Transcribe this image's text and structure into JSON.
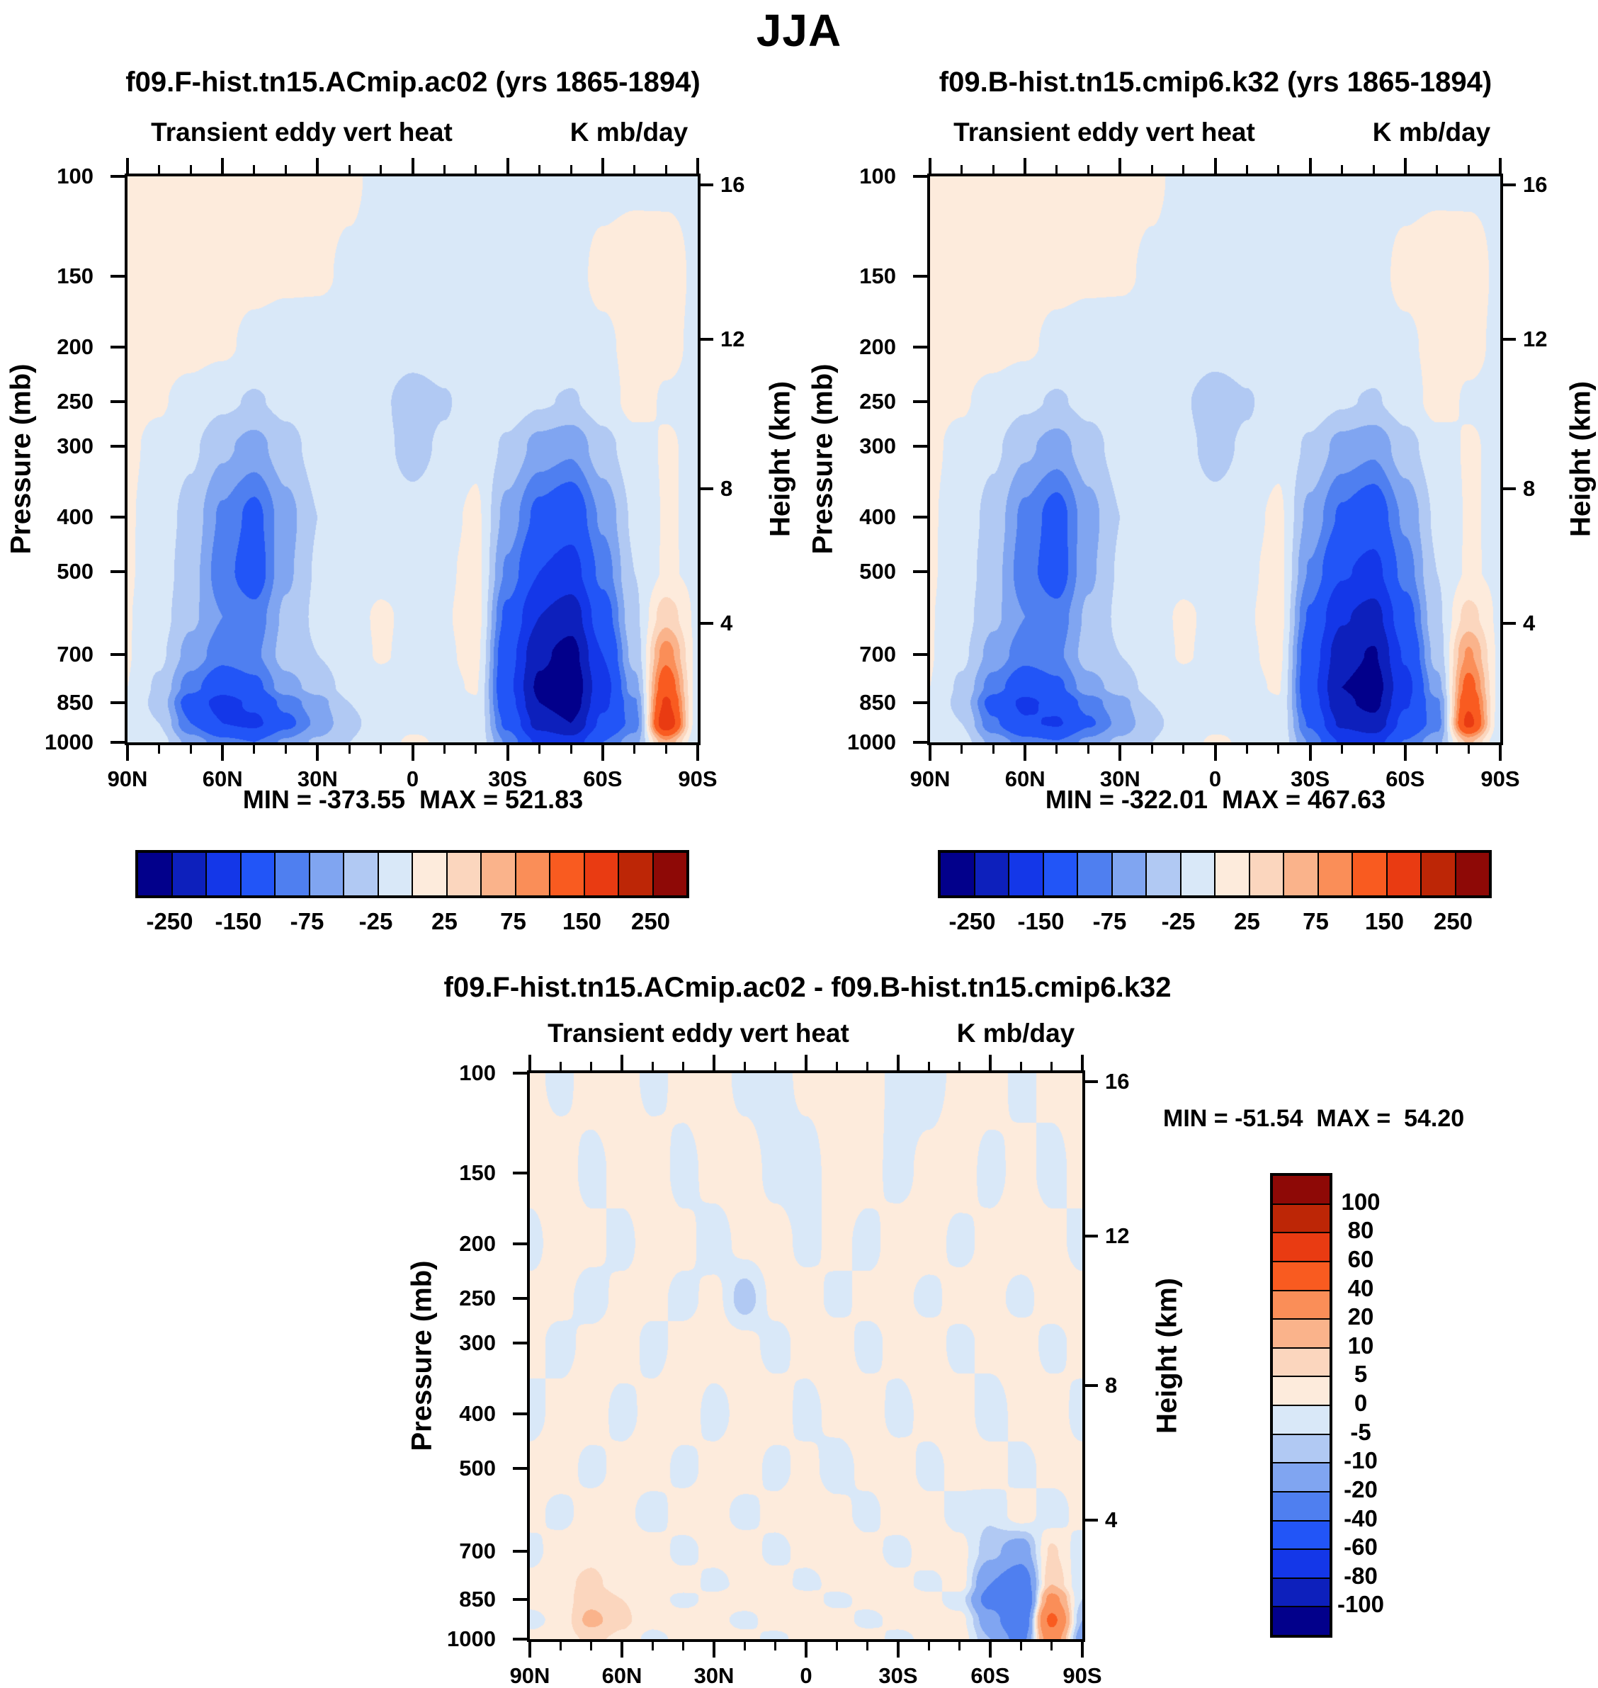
{
  "page_title": "JJA",
  "palette": [
    "#02008B",
    "#0D20BC",
    "#1437E8",
    "#2255F7",
    "#4F7FF0",
    "#80A5F1",
    "#B1C9F3",
    "#D9E8F8",
    "#FDEBDC",
    "#FBD6BE",
    "#FAB38B",
    "#FA8E58",
    "#F95B20",
    "#E93B12",
    "#BD2606",
    "#8E0906"
  ],
  "panels": [
    {
      "title": "f09.F-hist.tn15.ACmip.ac02 (yrs 1865-1894)",
      "subtitle_left": "Transient eddy vert heat",
      "subtitle_right": "K mb/day",
      "stats": "MIN = -373.55  MAX = 521.83"
    },
    {
      "title": "f09.B-hist.tn15.cmip6.k32 (yrs 1865-1894)",
      "subtitle_left": "Transient eddy vert heat",
      "subtitle_right": "K mb/day",
      "stats": "MIN = -322.01  MAX = 467.63"
    },
    {
      "title": "f09.F-hist.tn15.ACmip.ac02 - f09.B-hist.tn15.cmip6.k32",
      "subtitle_left": "Transient eddy vert heat",
      "subtitle_right": "K mb/day",
      "stats": "MIN = -51.54  MAX =  54.20"
    }
  ],
  "axes": {
    "x_tick_labels": [
      "90N",
      "60N",
      "30N",
      "0",
      "30S",
      "60S",
      "90S"
    ],
    "x_major_lats": [
      90,
      60,
      30,
      0,
      -30,
      -60,
      -90
    ],
    "x_minor_lats": [
      80,
      70,
      50,
      40,
      20,
      10,
      -10,
      -20,
      -40,
      -50,
      -70,
      -80
    ],
    "pressure_label": "Pressure (mb)",
    "pressure_ticks": [
      100,
      150,
      200,
      250,
      300,
      400,
      500,
      700,
      850,
      1000
    ],
    "height_label": "Height (km)",
    "height_ticks": [
      {
        "km": "16",
        "p": 103.5
      },
      {
        "km": "12",
        "p": 194
      },
      {
        "km": "8",
        "p": 356.5
      },
      {
        "km": "4",
        "p": 616.6
      }
    ]
  },
  "colorbar_top": {
    "boundary_labels": [
      "-250",
      "-150",
      "-75",
      "-25",
      "25",
      "75",
      "150",
      "250"
    ],
    "labeled_boundary_index": [
      1,
      3,
      5,
      7,
      9,
      11,
      13,
      15
    ]
  },
  "colorbar_side": {
    "boundary_labels": [
      "100",
      "80",
      "60",
      "40",
      "20",
      "10",
      "5",
      "0",
      "-5",
      "-10",
      "-20",
      "-40",
      "-60",
      "-80",
      "-100"
    ]
  },
  "chart_data": [
    {
      "type": "heatmap",
      "name": "case1-transient-eddy-vert-heat",
      "units": "K mb/day",
      "lats": [
        90,
        80,
        70,
        60,
        50,
        40,
        30,
        20,
        10,
        0,
        -10,
        -20,
        -30,
        -40,
        -50,
        -60,
        -70,
        -80,
        -90
      ],
      "pressures": [
        100,
        150,
        200,
        250,
        300,
        400,
        500,
        600,
        700,
        800,
        850,
        925,
        1000
      ],
      "levels": [
        -250,
        -200,
        -150,
        -100,
        -75,
        -50,
        -25,
        0,
        25,
        50,
        75,
        100,
        150,
        200,
        250
      ],
      "min": -373.55,
      "max": 521.83,
      "values": [
        [
          6,
          8,
          8,
          7,
          5,
          4,
          3,
          2,
          -3,
          -4,
          -5,
          -5,
          -5,
          -4,
          -4,
          -4,
          -3,
          -2,
          -2
        ],
        [
          6,
          9,
          9,
          7,
          5,
          3,
          2,
          -2,
          -4,
          -6,
          -6,
          -6,
          -5,
          -5,
          -5,
          4,
          8,
          5,
          -2
        ],
        [
          5,
          7,
          7,
          4,
          -6,
          -10,
          -8,
          -6,
          -8,
          -12,
          -8,
          -6,
          -5,
          -6,
          -8,
          -4,
          6,
          4,
          -3
        ],
        [
          4,
          2,
          -8,
          -20,
          -28,
          -18,
          -10,
          -8,
          -20,
          -40,
          -28,
          -8,
          -10,
          -22,
          -28,
          -12,
          8,
          -2,
          -4
        ],
        [
          3,
          -5,
          -20,
          -45,
          -60,
          -35,
          -15,
          -10,
          -18,
          -35,
          -20,
          -6,
          -30,
          -60,
          -70,
          -35,
          -10,
          2,
          -4
        ],
        [
          2,
          -10,
          -35,
          -80,
          -110,
          -60,
          -25,
          -12,
          -10,
          -15,
          -8,
          5,
          -60,
          -110,
          -130,
          -70,
          -20,
          2,
          -4
        ],
        [
          2,
          -12,
          -40,
          -90,
          -120,
          -55,
          -22,
          -10,
          -6,
          -8,
          -4,
          8,
          -80,
          -150,
          -170,
          -90,
          -25,
          3,
          -5
        ],
        [
          1,
          -15,
          -45,
          -75,
          -90,
          -45,
          -20,
          -8,
          3,
          -5,
          -2,
          10,
          -110,
          -200,
          -230,
          -120,
          -30,
          40,
          -5
        ],
        [
          1,
          -20,
          -60,
          -90,
          -80,
          -40,
          -25,
          -10,
          2,
          -6,
          -3,
          6,
          -130,
          -240,
          -270,
          -150,
          -40,
          90,
          -6
        ],
        [
          0,
          -30,
          -90,
          -130,
          -110,
          -60,
          -40,
          -15,
          -8,
          -8,
          -5,
          2,
          -140,
          -260,
          -290,
          -170,
          -60,
          130,
          -8
        ],
        [
          0,
          -35,
          -120,
          -170,
          -140,
          -90,
          -60,
          -25,
          -12,
          -10,
          -8,
          -2,
          -130,
          -250,
          -280,
          -160,
          -80,
          160,
          -10
        ],
        [
          -1,
          -25,
          -100,
          -150,
          -160,
          -110,
          -70,
          -30,
          -15,
          -8,
          -5,
          -4,
          -110,
          -220,
          -250,
          -140,
          -90,
          190,
          -15
        ],
        [
          -1,
          -15,
          -60,
          -90,
          -100,
          -70,
          -45,
          -25,
          -12,
          5,
          -5,
          -6,
          -80,
          -160,
          -180,
          -100,
          -60,
          70,
          -20
        ]
      ]
    },
    {
      "type": "heatmap",
      "name": "case2-transient-eddy-vert-heat",
      "units": "K mb/day",
      "lats": [
        90,
        80,
        70,
        60,
        50,
        40,
        30,
        20,
        10,
        0,
        -10,
        -20,
        -30,
        -40,
        -50,
        -60,
        -70,
        -80,
        -90
      ],
      "pressures": [
        100,
        150,
        200,
        250,
        300,
        400,
        500,
        600,
        700,
        800,
        850,
        925,
        1000
      ],
      "levels": [
        -250,
        -200,
        -150,
        -100,
        -75,
        -50,
        -25,
        0,
        25,
        50,
        75,
        100,
        150,
        200,
        250
      ],
      "min": -322.01,
      "max": 467.63,
      "values": [
        [
          6,
          8,
          8,
          7,
          5,
          4,
          3,
          2,
          -3,
          -4,
          -5,
          -5,
          -5,
          -4,
          -4,
          -4,
          -3,
          -2,
          -2
        ],
        [
          6,
          9,
          9,
          7,
          5,
          3,
          2,
          -2,
          -4,
          -6,
          -6,
          -6,
          -5,
          -5,
          -5,
          4,
          8,
          5,
          -2
        ],
        [
          5,
          7,
          7,
          4,
          -6,
          -10,
          -8,
          -6,
          -8,
          -12,
          -8,
          -6,
          -5,
          -6,
          -8,
          -4,
          6,
          4,
          -3
        ],
        [
          4,
          2,
          -8,
          -20,
          -28,
          -18,
          -10,
          -8,
          -22,
          -42,
          -28,
          -8,
          -10,
          -22,
          -28,
          -12,
          8,
          -2,
          -4
        ],
        [
          3,
          -5,
          -20,
          -45,
          -62,
          -35,
          -15,
          -10,
          -18,
          -35,
          -20,
          -6,
          -30,
          -60,
          -70,
          -35,
          -10,
          2,
          -4
        ],
        [
          2,
          -10,
          -35,
          -82,
          -115,
          -60,
          -25,
          -12,
          -10,
          -15,
          -8,
          5,
          -58,
          -105,
          -125,
          -70,
          -20,
          2,
          -4
        ],
        [
          2,
          -12,
          -40,
          -90,
          -118,
          -55,
          -22,
          -10,
          -6,
          -8,
          -4,
          8,
          -78,
          -145,
          -165,
          -88,
          -25,
          3,
          -5
        ],
        [
          1,
          -15,
          -45,
          -75,
          -90,
          -45,
          -20,
          -8,
          3,
          -5,
          -2,
          10,
          -105,
          -195,
          -220,
          -118,
          -30,
          35,
          -5
        ],
        [
          1,
          -20,
          -60,
          -90,
          -80,
          -40,
          -25,
          -10,
          2,
          -6,
          -3,
          6,
          -125,
          -230,
          -255,
          -145,
          -40,
          80,
          -6
        ],
        [
          0,
          -30,
          -88,
          -128,
          -108,
          -60,
          -40,
          -15,
          -8,
          -8,
          -5,
          2,
          -135,
          -250,
          -275,
          -165,
          -60,
          115,
          -8
        ],
        [
          0,
          -35,
          -115,
          -160,
          -135,
          -88,
          -58,
          -25,
          -12,
          -10,
          -8,
          -2,
          -125,
          -240,
          -265,
          -155,
          -80,
          140,
          -10
        ],
        [
          -1,
          -25,
          -95,
          -145,
          -155,
          -105,
          -68,
          -30,
          -15,
          -8,
          -5,
          -4,
          -105,
          -210,
          -235,
          -135,
          -88,
          165,
          -15
        ],
        [
          -1,
          -15,
          -58,
          -88,
          -98,
          -68,
          -44,
          -25,
          -12,
          5,
          -5,
          -6,
          -78,
          -155,
          -172,
          -98,
          -58,
          55,
          -20
        ]
      ]
    },
    {
      "type": "heatmap",
      "name": "difference-case1-minus-case2",
      "units": "K mb/day",
      "lats": [
        90,
        80,
        70,
        60,
        50,
        40,
        30,
        20,
        10,
        0,
        -10,
        -20,
        -30,
        -40,
        -50,
        -60,
        -70,
        -80,
        -90
      ],
      "pressures": [
        100,
        150,
        200,
        250,
        300,
        400,
        500,
        600,
        700,
        800,
        850,
        925,
        1000
      ],
      "levels": [
        -100,
        -80,
        -60,
        -40,
        -20,
        -10,
        -5,
        0,
        5,
        10,
        20,
        40,
        60,
        80,
        100
      ],
      "min": -51.54,
      "max": 54.2,
      "values": [
        [
          2,
          -2,
          3,
          3,
          -2,
          2,
          3,
          -2,
          -3,
          2,
          3,
          3,
          -2,
          -3,
          2,
          3,
          -2,
          2,
          2
        ],
        [
          2,
          3,
          -2,
          2,
          3,
          -2,
          2,
          3,
          -2,
          -3,
          3,
          2,
          -2,
          2,
          3,
          -2,
          2,
          -2,
          2
        ],
        [
          -2,
          3,
          2,
          -2,
          3,
          2,
          -3,
          2,
          3,
          -2,
          2,
          -2,
          3,
          3,
          -2,
          2,
          3,
          2,
          -2
        ],
        [
          2,
          2,
          -3,
          2,
          2,
          -2,
          2,
          -8,
          2,
          3,
          -2,
          2,
          2,
          -2,
          3,
          2,
          -2,
          3,
          2
        ],
        [
          2,
          -2,
          2,
          3,
          -2,
          2,
          3,
          2,
          -2,
          2,
          3,
          -2,
          2,
          3,
          -2,
          2,
          3,
          -2,
          2
        ],
        [
          -2,
          2,
          3,
          -2,
          2,
          3,
          -2,
          2,
          3,
          -2,
          2,
          3,
          -2,
          2,
          3,
          -3,
          2,
          3,
          -2
        ],
        [
          2,
          3,
          -2,
          2,
          3,
          -2,
          2,
          3,
          -2,
          2,
          -3,
          2,
          3,
          -2,
          2,
          3,
          -2,
          2,
          2
        ],
        [
          2,
          -2,
          3,
          2,
          -3,
          3,
          2,
          -2,
          2,
          3,
          2,
          -2,
          3,
          2,
          -2,
          -4,
          3,
          -3,
          2
        ],
        [
          -2,
          3,
          4,
          2,
          3,
          -2,
          2,
          3,
          -2,
          2,
          3,
          2,
          -2,
          3,
          2,
          -8,
          -15,
          6,
          -3
        ],
        [
          2,
          4,
          6,
          3,
          2,
          3,
          -2,
          2,
          3,
          -2,
          2,
          3,
          2,
          -2,
          3,
          -20,
          -30,
          10,
          -4
        ],
        [
          2,
          3,
          8,
          5,
          3,
          -2,
          2,
          3,
          2,
          3,
          -2,
          2,
          3,
          2,
          -3,
          -25,
          -40,
          25,
          -5
        ],
        [
          -2,
          2,
          12,
          6,
          2,
          3,
          2,
          -2,
          3,
          2,
          3,
          -2,
          2,
          3,
          2,
          -15,
          -35,
          45,
          -10
        ],
        [
          2,
          3,
          6,
          4,
          -2,
          2,
          3,
          2,
          -2,
          3,
          2,
          3,
          -2,
          2,
          3,
          -10,
          -25,
          30,
          -15
        ]
      ]
    }
  ]
}
